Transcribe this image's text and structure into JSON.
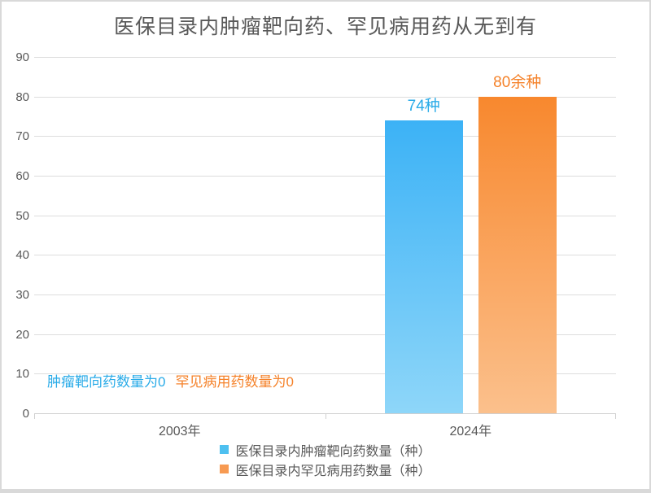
{
  "title": "医保目录内肿瘤靶向药、罕见病用药从无到有",
  "chart_data": {
    "type": "bar",
    "categories": [
      "2003年",
      "2024年"
    ],
    "series": [
      {
        "name": "医保目录内肿瘤靶向药数量（种）",
        "values": [
          0,
          74
        ],
        "data_labels": [
          "",
          "74种"
        ],
        "color_top": "#3cb2f6",
        "color_bottom": "#8ed6f9",
        "label_color": "#29abe8",
        "legend_color": "#4ec0f0"
      },
      {
        "name": "医保目录内罕见病用药数量（种）",
        "values": [
          0,
          80
        ],
        "data_labels": [
          "",
          "80余种"
        ],
        "color_top": "#f8882e",
        "color_bottom": "#fbc08c",
        "label_color": "#f5822a",
        "legend_color": "#f79a52"
      }
    ],
    "ylim": [
      0,
      90
    ],
    "ytick_step": 10,
    "grid": true,
    "legend_position": "bottom",
    "annotations": [
      {
        "text": "肿瘤靶向药数量为0",
        "color": "#29abe8"
      },
      {
        "text": "罕见病用药数量为0",
        "color": "#f5822a"
      }
    ]
  }
}
